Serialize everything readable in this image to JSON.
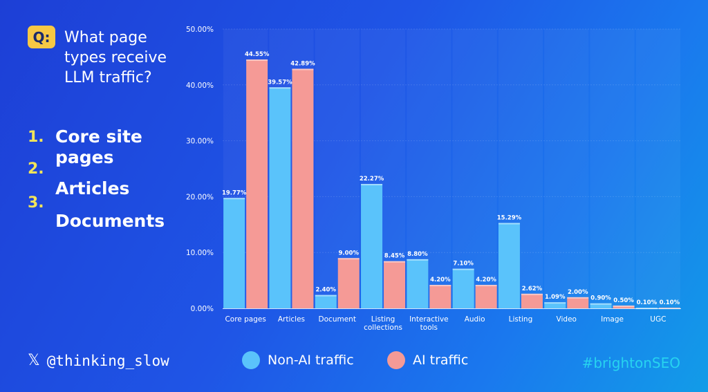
{
  "question": {
    "badge": "Q:",
    "text": "What page types receive LLM traffic?"
  },
  "answers": [
    {
      "num": "1.",
      "label": "Core site"
    },
    {
      "num": "2.",
      "label": "pages"
    },
    {
      "num": "3.",
      "label": "Articles"
    },
    {
      "num": "",
      "label": "Documents"
    }
  ],
  "footer": {
    "x_icon": "𝕏",
    "handle": "@thinking_slow",
    "hashtag": "#brightonSEO"
  },
  "colors": {
    "non_ai": "#5ac3fb",
    "ai": "#f59a96",
    "accent_yellow": "#f7c844",
    "hashtag": "#27d3f0"
  },
  "chart_data": {
    "type": "bar",
    "categories": [
      "Core pages",
      "Articles",
      "Document",
      "Listing collections",
      "Interactive tools",
      "Audio",
      "Listing",
      "Video",
      "Image",
      "UGC"
    ],
    "category_lines": [
      [
        "Core pages"
      ],
      [
        "Articles"
      ],
      [
        "Document"
      ],
      [
        "Listing",
        "collections"
      ],
      [
        "Interactive",
        "tools"
      ],
      [
        "Audio"
      ],
      [
        "Listing"
      ],
      [
        "Video"
      ],
      [
        "Image"
      ],
      [
        "UGC"
      ]
    ],
    "series": [
      {
        "name": "Non-AI traffic",
        "color": "#5ac3fb",
        "values": [
          19.77,
          39.57,
          2.4,
          22.27,
          8.8,
          7.1,
          15.29,
          1.09,
          0.9,
          0.1
        ],
        "labels": [
          "19.77%",
          "39.57%",
          "2.40%",
          "22.27%",
          "8.80%",
          "7.10%",
          "15.29%",
          "1.09%",
          "0.90%",
          "0.10%"
        ]
      },
      {
        "name": "AI traffic",
        "color": "#f59a96",
        "values": [
          44.55,
          42.89,
          9.0,
          8.45,
          4.2,
          4.2,
          2.62,
          2.0,
          0.5,
          0.1
        ],
        "labels": [
          "44.55%",
          "42.89%",
          "9.00%",
          "8.45%",
          "4.20%",
          "4.20%",
          "2.62%",
          "2.00%",
          "0.50%",
          "0.10%"
        ]
      }
    ],
    "ylim": [
      0,
      50
    ],
    "yticks": [
      0,
      10,
      20,
      30,
      40,
      50
    ],
    "ytick_labels": [
      "0.00%",
      "10.00%",
      "20.00%",
      "30.00%",
      "40.00%",
      "50.00%"
    ],
    "grid": true,
    "legend": "bottom"
  }
}
